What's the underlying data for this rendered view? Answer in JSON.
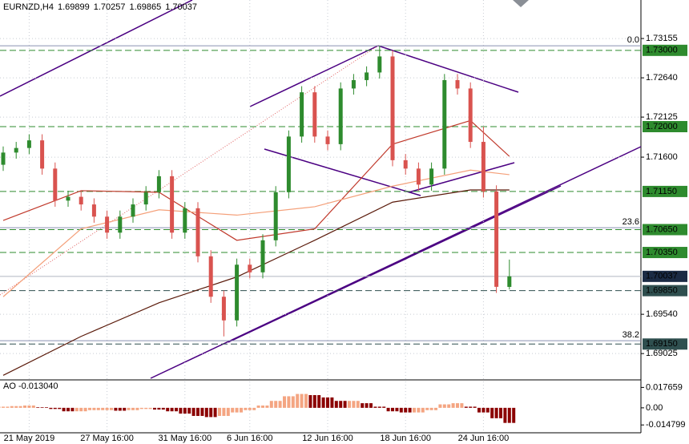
{
  "chart_data": {
    "type": "candlestick",
    "symbol": "EURNZD,H4",
    "categories": [
      null,
      null,
      "21 May 2019",
      null,
      null,
      null,
      null,
      null,
      "27 May 16:00",
      null,
      null,
      null,
      null,
      null,
      "31 May 16:00",
      null,
      null,
      null,
      null,
      "6 Jun 16:00",
      null,
      null,
      null,
      null,
      null,
      "12 Jun 16:00",
      null,
      null,
      null,
      null,
      null,
      "18 Jun 16:00",
      null,
      null,
      null,
      null,
      null,
      "24 Jun 16:00",
      null,
      null
    ],
    "open": [
      1.715,
      1.7166,
      1.7172,
      1.7182,
      1.7145,
      1.7103,
      1.7108,
      1.7098,
      1.7082,
      1.7061,
      1.7082,
      1.7098,
      1.7114,
      1.7135,
      1.7061,
      1.7093,
      1.703,
      1.6977,
      1.6946,
      1.7019,
      1.7009,
      1.7051,
      1.7114,
      1.7187,
      1.7245,
      1.7187,
      1.7177,
      1.725,
      1.7261,
      1.7271,
      1.7292,
      1.7156,
      1.7145,
      1.7124,
      1.7145,
      1.7261,
      1.725,
      1.718,
      1.7115,
      1.69899
    ],
    "high": [
      1.7174,
      1.718,
      1.719,
      1.719,
      1.7153,
      1.7116,
      1.7116,
      1.7106,
      1.709,
      1.709,
      1.7106,
      1.7122,
      1.7143,
      1.7143,
      1.7101,
      1.7101,
      1.7038,
      1.6985,
      1.7027,
      1.7027,
      1.7059,
      1.7122,
      1.7195,
      1.7253,
      1.7253,
      1.7195,
      1.7258,
      1.7269,
      1.7279,
      1.7306,
      1.73,
      1.7164,
      1.7153,
      1.7153,
      1.7269,
      1.7269,
      1.7258,
      1.72,
      1.7123,
      1.70257
    ],
    "low": [
      1.7142,
      1.7158,
      1.7164,
      1.7137,
      1.7095,
      1.7095,
      1.709,
      1.7074,
      1.7053,
      1.7053,
      1.7074,
      1.709,
      1.7106,
      1.7053,
      1.7053,
      1.7022,
      1.6969,
      1.6925,
      1.6938,
      1.7001,
      1.7001,
      1.7043,
      1.7106,
      1.7179,
      1.7179,
      1.7169,
      1.7169,
      1.7242,
      1.7253,
      1.7263,
      1.7148,
      1.7137,
      1.7116,
      1.7116,
      1.7137,
      1.7242,
      1.7172,
      1.7107,
      1.6982,
      1.69865
    ],
    "close": [
      1.7166,
      1.7172,
      1.7182,
      1.7145,
      1.7103,
      1.7108,
      1.7098,
      1.7082,
      1.7061,
      1.7082,
      1.7098,
      1.7114,
      1.7135,
      1.7061,
      1.7093,
      1.703,
      1.6977,
      1.6946,
      1.7019,
      1.7009,
      1.7051,
      1.7114,
      1.7187,
      1.7245,
      1.7187,
      1.7177,
      1.725,
      1.7261,
      1.7271,
      1.7292,
      1.7156,
      1.7145,
      1.7124,
      1.7145,
      1.7261,
      1.725,
      1.718,
      1.7115,
      1.699,
      1.70037
    ],
    "up_color": "#2e8b2e",
    "down_color": "#d9534f",
    "current_price_color": "#1b2b44",
    "ylim": [
      1.6868,
      1.7366
    ],
    "yticks": [
      1.73155,
      {
        "value": 1.7264,
        "label": "1.72640"
      },
      1.72125,
      {
        "value": 1.716,
        "label": "1.71600"
      },
      {
        "value": 1.6954,
        "label": "1.69540"
      },
      1.69025
    ],
    "levels": [
      {
        "value": 1.73,
        "label": "1.73000",
        "color": "#2e8b2e"
      },
      {
        "value": 1.72,
        "label": "1.72000",
        "color": "#2e8b2e"
      },
      {
        "value": 1.7115,
        "label": "1.71150",
        "color": "#2e8b2e"
      },
      {
        "value": 1.7065,
        "label": "1.70650",
        "color": "#2e8b2e"
      },
      {
        "value": 1.7035,
        "label": "1.70350",
        "color": "#2e8b2e"
      },
      {
        "value": 1.6985,
        "label": "1.69850",
        "color": "#2f4f4f"
      },
      {
        "value": 1.6915,
        "label": "1.69150",
        "color": "#2f4f4f"
      }
    ],
    "fib_levels": [
      {
        "value": 1.7306,
        "label": "0.0"
      },
      {
        "value": 1.70675,
        "label": "23.6"
      },
      {
        "value": 1.69193,
        "label": "38.2"
      }
    ],
    "moving_averages": [
      {
        "color": "#c0392b",
        "x": [
          0,
          6,
          12,
          18,
          24,
          30,
          36,
          39
        ],
        "values": [
          1.7077,
          1.7116,
          1.7114,
          1.7051,
          1.7066,
          1.7177,
          1.7208,
          1.7161
        ]
      },
      {
        "color": "#f4a07a",
        "x": [
          0,
          6,
          12,
          18,
          24,
          30,
          36,
          39
        ],
        "values": [
          1.6977,
          1.7066,
          1.7091,
          1.7084,
          1.7095,
          1.7122,
          1.7143,
          1.7137
        ]
      },
      {
        "color": "#5a1a0a",
        "x": [
          0,
          6,
          12,
          18,
          24,
          30,
          36,
          39
        ],
        "values": [
          1.6874,
          1.6925,
          1.6969,
          1.7003,
          1.7051,
          1.7101,
          1.7117,
          1.7117
        ]
      }
    ],
    "ao": {
      "title": "AO -0.013040",
      "values": [
        0.001,
        0.0015,
        0.002,
        0.0005,
        -0.001,
        -0.003,
        -0.003,
        -0.002,
        -0.002,
        -0.0025,
        -0.002,
        -0.001,
        -0.0015,
        -0.003,
        -0.005,
        -0.007,
        -0.008,
        -0.007,
        -0.004,
        -0.002,
        0.002,
        0.006,
        0.01,
        0.012,
        0.011,
        0.009,
        0.006,
        0.006,
        0.004,
        0.001,
        -0.003,
        -0.004,
        -0.004,
        -0.002,
        0.003,
        0.004,
        0.001,
        -0.004,
        -0.009,
        -0.01304
      ],
      "rising_color": "#f4a582",
      "falling_color": "#8b0000",
      "ylim": [
        -0.0202,
        0.0214
      ],
      "yticks": [
        0.017659,
        {
          "value": 0,
          "label": "0.00"
        },
        -0.014799
      ]
    }
  }
}
